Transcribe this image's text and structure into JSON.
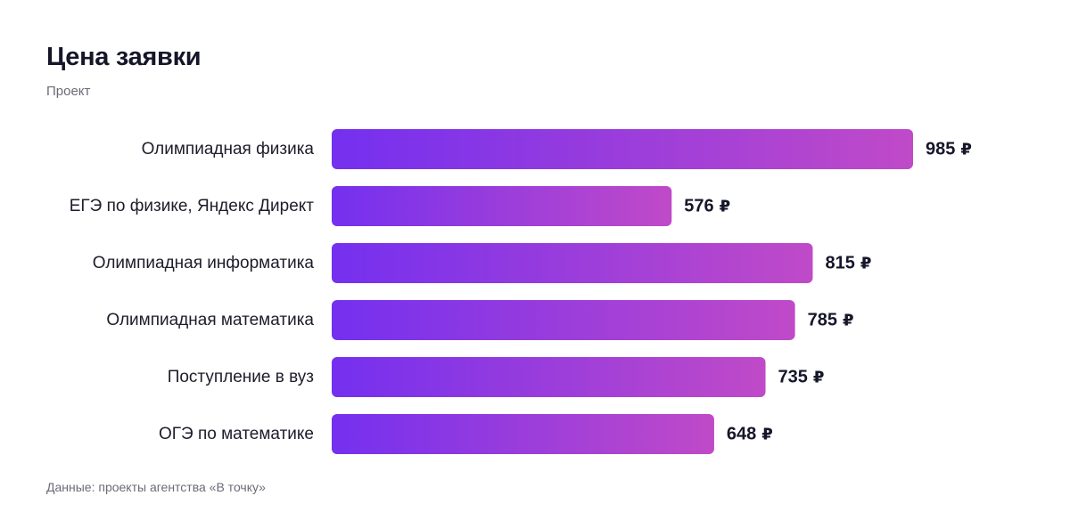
{
  "header": {
    "title": "Цена заявки",
    "subtitle": "Проект"
  },
  "footer": {
    "source": "Данные: проекты агентства «В точку»"
  },
  "chart_data": {
    "type": "bar",
    "orientation": "horizontal",
    "title": "Цена заявки",
    "subtitle": "Проект",
    "categories": [
      "Олимпиадная физика",
      "ЕГЭ по физике, Яндекс Директ",
      "Олимпиадная информатика",
      "Олимпиадная математика",
      "Поступление в вуз",
      "ОГЭ по математике"
    ],
    "values": [
      985,
      576,
      815,
      785,
      735,
      648
    ],
    "unit": "₽",
    "grid": false,
    "legend": "none",
    "colors": {
      "bar_start": "#7430ef",
      "bar_end": "#c04ac8",
      "text": "#16162a",
      "muted": "#6b6b78"
    }
  }
}
